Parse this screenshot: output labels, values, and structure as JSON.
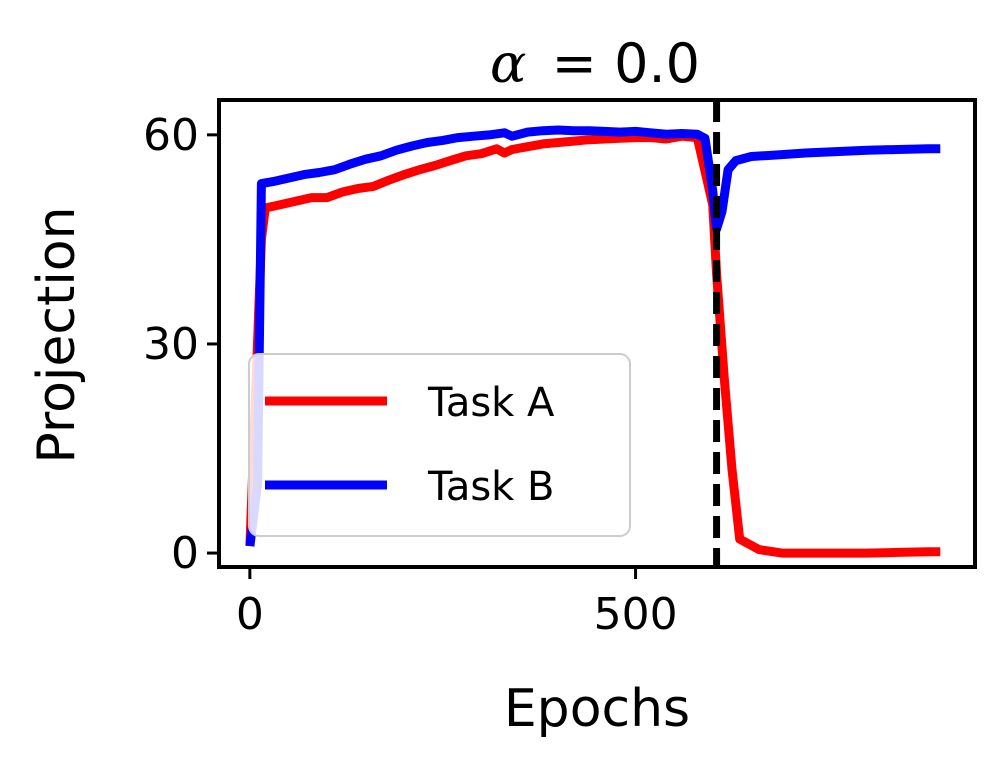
{
  "chart_data": {
    "type": "line",
    "title_var": "α",
    "title_value": "= 0.0",
    "xlabel": "Epochs",
    "ylabel": "Projection",
    "xlim": [
      -40,
      940
    ],
    "ylim": [
      -2,
      65
    ],
    "xticks": [
      0,
      500
    ],
    "yticks": [
      0,
      30,
      60
    ],
    "vline": {
      "x": 605,
      "style": "dashed",
      "color": "#000000"
    },
    "legend": {
      "position": "lower-left"
    },
    "series": [
      {
        "name": "Task A",
        "color": "#ff0000",
        "points": [
          [
            0,
            1
          ],
          [
            15,
            45
          ],
          [
            20,
            49.5
          ],
          [
            40,
            50
          ],
          [
            60,
            50.5
          ],
          [
            80,
            51
          ],
          [
            100,
            51
          ],
          [
            120,
            51.8
          ],
          [
            140,
            52.3
          ],
          [
            160,
            52.6
          ],
          [
            180,
            53.5
          ],
          [
            200,
            54.3
          ],
          [
            220,
            55
          ],
          [
            240,
            55.6
          ],
          [
            260,
            56.3
          ],
          [
            280,
            57
          ],
          [
            300,
            57.3
          ],
          [
            320,
            58
          ],
          [
            330,
            57.4
          ],
          [
            340,
            57.9
          ],
          [
            360,
            58.3
          ],
          [
            380,
            58.7
          ],
          [
            400,
            58.9
          ],
          [
            420,
            59.1
          ],
          [
            440,
            59.3
          ],
          [
            460,
            59.4
          ],
          [
            480,
            59.5
          ],
          [
            500,
            59.6
          ],
          [
            520,
            59.6
          ],
          [
            540,
            59.4
          ],
          [
            560,
            59.8
          ],
          [
            580,
            59.6
          ],
          [
            600,
            50
          ],
          [
            605,
            40
          ],
          [
            615,
            25
          ],
          [
            625,
            12
          ],
          [
            635,
            2
          ],
          [
            660,
            0.5
          ],
          [
            690,
            0
          ],
          [
            720,
            0
          ],
          [
            760,
            0
          ],
          [
            800,
            0
          ],
          [
            840,
            0.1
          ],
          [
            880,
            0.2
          ],
          [
            895,
            0.2
          ]
        ]
      },
      {
        "name": "Task B",
        "color": "#0000ff",
        "points": [
          [
            0,
            1
          ],
          [
            10,
            10
          ],
          [
            15,
            53
          ],
          [
            30,
            53.3
          ],
          [
            50,
            53.8
          ],
          [
            70,
            54.3
          ],
          [
            90,
            54.6
          ],
          [
            110,
            55
          ],
          [
            130,
            55.8
          ],
          [
            150,
            56.5
          ],
          [
            170,
            57
          ],
          [
            190,
            57.8
          ],
          [
            210,
            58.4
          ],
          [
            230,
            58.9
          ],
          [
            250,
            59.2
          ],
          [
            270,
            59.6
          ],
          [
            290,
            59.8
          ],
          [
            310,
            60
          ],
          [
            330,
            60.3
          ],
          [
            340,
            59.8
          ],
          [
            360,
            60.4
          ],
          [
            380,
            60.6
          ],
          [
            400,
            60.7
          ],
          [
            420,
            60.6
          ],
          [
            440,
            60.6
          ],
          [
            460,
            60.5
          ],
          [
            480,
            60.4
          ],
          [
            500,
            60.5
          ],
          [
            520,
            60.3
          ],
          [
            540,
            60.1
          ],
          [
            560,
            60.2
          ],
          [
            580,
            60.1
          ],
          [
            590,
            59.5
          ],
          [
            600,
            52
          ],
          [
            605,
            46.5
          ],
          [
            612,
            49
          ],
          [
            620,
            55
          ],
          [
            630,
            56.3
          ],
          [
            650,
            56.9
          ],
          [
            680,
            57.1
          ],
          [
            720,
            57.4
          ],
          [
            760,
            57.6
          ],
          [
            800,
            57.8
          ],
          [
            840,
            57.9
          ],
          [
            880,
            58
          ],
          [
            895,
            58
          ]
        ]
      }
    ]
  }
}
